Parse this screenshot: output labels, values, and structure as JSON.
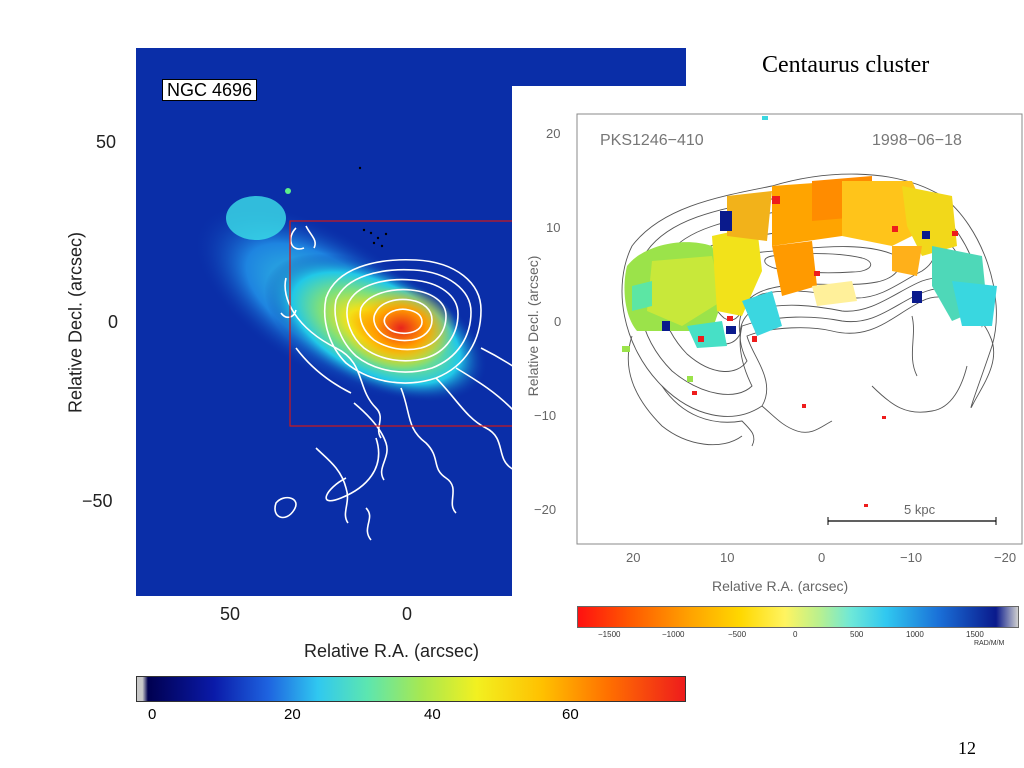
{
  "slide": {
    "title": "Centaurus cluster",
    "page_number": "12"
  },
  "left_panel": {
    "label": "NGC 4696",
    "xlabel": "Relative R.A. (arcsec)",
    "ylabel": "Relative Decl. (arcsec)",
    "x_ticks": [
      "50",
      "0"
    ],
    "y_ticks": [
      "50",
      "0",
      "−50"
    ],
    "colors": {
      "background": "#0a2ea8",
      "box": "#d01818",
      "contour": "#ffffff"
    }
  },
  "left_colorbar": {
    "ticks": [
      "0",
      "20",
      "40",
      "60"
    ]
  },
  "right_panel": {
    "source": "PKS1246−410",
    "date": "1998−06−18",
    "xlabel": "Relative R.A. (arcsec)",
    "ylabel": "Relative Decl. (arcsec)",
    "x_ticks": [
      "20",
      "10",
      "0",
      "−10",
      "−20"
    ],
    "y_ticks": [
      "20",
      "10",
      "0",
      "−10",
      "−20"
    ],
    "scalebar_label": "5 kpc"
  },
  "right_colorbar": {
    "ticks": [
      "−1500",
      "−1000",
      "−500",
      "0",
      "500",
      "1000",
      "1500"
    ],
    "unit": "RAD/M/M"
  }
}
